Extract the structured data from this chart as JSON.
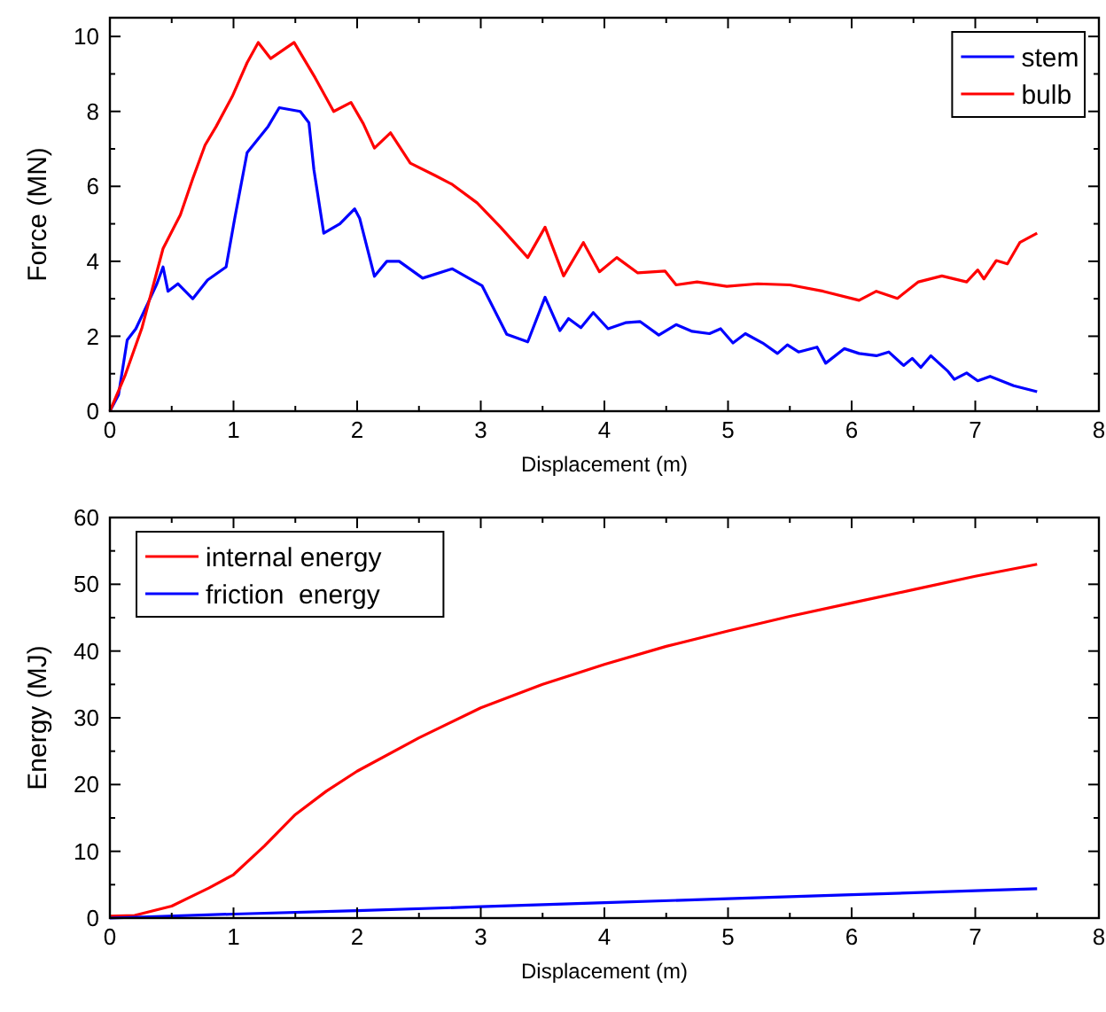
{
  "chart_data": [
    {
      "type": "line",
      "xlabel": "Displacement (m)",
      "ylabel": "Force (MN)",
      "xlim": [
        0,
        8
      ],
      "ylim": [
        0,
        10.5
      ],
      "legend": "top right",
      "xticks": [
        0,
        {
          "value": 0.5,
          "label": null
        },
        1,
        {
          "value": 1.5,
          "label": null
        },
        2,
        {
          "value": 2.5,
          "label": null
        },
        3,
        {
          "value": 3.5,
          "label": null
        },
        4,
        {
          "value": 4.5,
          "label": null
        },
        5,
        {
          "value": 5.5,
          "label": null
        },
        6,
        {
          "value": 6.5,
          "label": null
        },
        7,
        {
          "value": 7.5,
          "label": null
        },
        8
      ],
      "yticks": [
        0,
        {
          "value": 1,
          "label": null
        },
        2,
        {
          "value": 3,
          "label": null
        },
        4,
        {
          "value": 5,
          "label": null
        },
        6,
        {
          "value": 7,
          "label": null
        },
        8,
        {
          "value": 9,
          "label": null
        },
        10
      ],
      "series": [
        {
          "name": "stem",
          "color": "#0000ff",
          "x": [
            0,
            0.07,
            0.14,
            0.21,
            0.31,
            0.38,
            0.43,
            0.47,
            0.55,
            0.67,
            0.79,
            0.94,
            1.01,
            1.11,
            1.28,
            1.37,
            1.54,
            1.61,
            1.65,
            1.73,
            1.86,
            1.98,
            2.02,
            2.14,
            2.24,
            2.34,
            2.53,
            2.77,
            3.01,
            3.21,
            3.38,
            3.52,
            3.64,
            3.71,
            3.81,
            3.91,
            4.03,
            4.17,
            4.29,
            4.44,
            4.58,
            4.71,
            4.85,
            4.94,
            5.04,
            5.14,
            5.28,
            5.4,
            5.48,
            5.57,
            5.72,
            5.79,
            5.94,
            6.06,
            6.2,
            6.3,
            6.42,
            6.49,
            6.56,
            6.64,
            6.78,
            6.83,
            6.93,
            7.02,
            7.12,
            7.31,
            7.5
          ],
          "values": [
            0,
            0.44,
            1.9,
            2.2,
            2.9,
            3.4,
            3.85,
            3.2,
            3.4,
            3.0,
            3.5,
            3.85,
            5.15,
            6.9,
            7.6,
            8.1,
            8.0,
            7.7,
            6.45,
            4.75,
            5.0,
            5.4,
            5.15,
            3.6,
            4.0,
            4.0,
            3.55,
            3.8,
            3.35,
            2.05,
            1.85,
            3.04,
            2.15,
            2.47,
            2.23,
            2.63,
            2.2,
            2.36,
            2.39,
            2.03,
            2.31,
            2.13,
            2.07,
            2.2,
            1.82,
            2.07,
            1.82,
            1.54,
            1.77,
            1.58,
            1.71,
            1.28,
            1.67,
            1.54,
            1.48,
            1.58,
            1.22,
            1.41,
            1.17,
            1.48,
            1.06,
            0.85,
            1.02,
            0.81,
            0.93,
            0.68,
            0.52
          ]
        },
        {
          "name": "bulb",
          "color": "#ff0000",
          "x": [
            0,
            0.12,
            0.26,
            0.43,
            0.57,
            0.67,
            0.77,
            0.86,
            0.99,
            1.11,
            1.2,
            1.3,
            1.49,
            1.66,
            1.81,
            1.95,
            2.05,
            2.14,
            2.27,
            2.43,
            2.63,
            2.77,
            2.97,
            3.16,
            3.38,
            3.52,
            3.67,
            3.83,
            3.96,
            4.1,
            4.27,
            4.49,
            4.58,
            4.75,
            4.99,
            5.24,
            5.5,
            5.77,
            6.06,
            6.2,
            6.37,
            6.54,
            6.73,
            6.93,
            7.02,
            7.07,
            7.17,
            7.26,
            7.36,
            7.5
          ],
          "values": [
            0,
            0.93,
            2.23,
            4.34,
            5.24,
            6.2,
            7.1,
            7.6,
            8.4,
            9.3,
            9.84,
            9.41,
            9.84,
            8.9,
            8.0,
            8.24,
            7.67,
            7.02,
            7.43,
            6.62,
            6.29,
            6.05,
            5.56,
            4.91,
            4.1,
            4.91,
            3.61,
            4.5,
            3.72,
            4.1,
            3.69,
            3.74,
            3.37,
            3.45,
            3.33,
            3.4,
            3.37,
            3.2,
            2.96,
            3.2,
            3.01,
            3.45,
            3.61,
            3.45,
            3.77,
            3.53,
            4.02,
            3.93,
            4.5,
            4.75
          ]
        }
      ]
    },
    {
      "type": "line",
      "xlabel": "Displacement (m)",
      "ylabel": "Energy (MJ)",
      "xlim": [
        0,
        8
      ],
      "ylim": [
        0,
        60
      ],
      "legend": "top left",
      "xticks": [
        0,
        {
          "value": 0.5,
          "label": null
        },
        1,
        {
          "value": 1.5,
          "label": null
        },
        2,
        {
          "value": 2.5,
          "label": null
        },
        3,
        {
          "value": 3.5,
          "label": null
        },
        4,
        {
          "value": 4.5,
          "label": null
        },
        5,
        {
          "value": 5.5,
          "label": null
        },
        6,
        {
          "value": 6.5,
          "label": null
        },
        7,
        {
          "value": 7.5,
          "label": null
        },
        8
      ],
      "yticks": [
        0,
        {
          "value": 5,
          "label": null
        },
        10,
        {
          "value": 15,
          "label": null
        },
        20,
        {
          "value": 25,
          "label": null
        },
        30,
        {
          "value": 35,
          "label": null
        },
        40,
        {
          "value": 45,
          "label": null
        },
        50,
        {
          "value": 55,
          "label": null
        },
        60
      ],
      "series": [
        {
          "name": "internal energy",
          "color": "#ff0000",
          "x": [
            0,
            0.2,
            0.5,
            0.8,
            1,
            1.25,
            1.5,
            1.75,
            2,
            2.5,
            3,
            3.5,
            4,
            4.5,
            5,
            5.5,
            6,
            6.5,
            7,
            7.5
          ],
          "values": [
            0.3,
            0.4,
            1.8,
            4.5,
            6.5,
            10.8,
            15.5,
            19,
            22,
            27,
            31.5,
            35,
            38,
            40.7,
            43,
            45.2,
            47.2,
            49.2,
            51.2,
            53
          ]
        },
        {
          "name": "friction  energy",
          "color": "#0000ff",
          "x": [
            0,
            1,
            2,
            3,
            4,
            5,
            6,
            7,
            7.5
          ],
          "values": [
            0,
            0.6,
            1.1,
            1.7,
            2.3,
            2.9,
            3.5,
            4.1,
            4.4
          ]
        }
      ]
    }
  ]
}
